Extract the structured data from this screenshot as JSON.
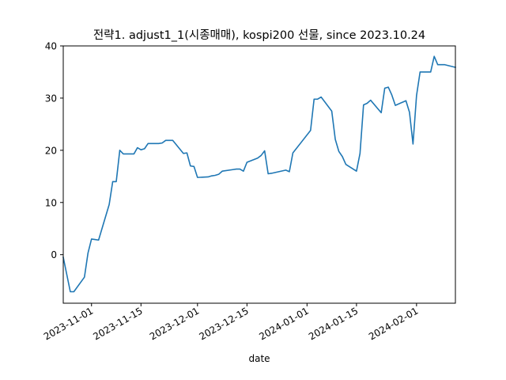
{
  "chart_data": {
    "type": "line",
    "title": "전략1. adjust1_1(시종매매), kospi200 선물, since 2023.10.24",
    "xlabel": "date",
    "ylabel": "",
    "xlim": [
      "2023-10-24",
      "2024-02-12"
    ],
    "ylim": [
      -9.3,
      40
    ],
    "grid": false,
    "yticks": [
      0,
      10,
      20,
      30,
      40
    ],
    "yticklabels": [
      "0",
      "10",
      "20",
      "30",
      "40"
    ],
    "xticks": [
      "2023-11-01",
      "2023-11-15",
      "2023-12-01",
      "2023-12-15",
      "2024-01-01",
      "2024-01-15",
      "2024-02-01"
    ],
    "xticklabels": [
      "2023-11-01",
      "2023-11-15",
      "2023-12-01",
      "2023-12-15",
      "2024-01-01",
      "2024-01-15",
      "2024-02-01"
    ],
    "line_color": "#1f77b4",
    "series": [
      {
        "x": [
          "2023-10-24",
          "2023-10-25",
          "2023-10-26",
          "2023-10-27",
          "2023-10-30",
          "2023-10-31",
          "2023-11-01",
          "2023-11-02",
          "2023-11-03",
          "2023-11-06",
          "2023-11-07",
          "2023-11-08",
          "2023-11-09",
          "2023-11-10",
          "2023-11-13",
          "2023-11-14",
          "2023-11-15",
          "2023-11-16",
          "2023-11-17",
          "2023-11-20",
          "2023-11-21",
          "2023-11-22",
          "2023-11-23",
          "2023-11-24",
          "2023-11-27",
          "2023-11-28",
          "2023-11-29",
          "2023-11-30",
          "2023-12-01",
          "2023-12-04",
          "2023-12-05",
          "2023-12-06",
          "2023-12-07",
          "2023-12-08",
          "2023-12-11",
          "2023-12-12",
          "2023-12-13",
          "2023-12-14",
          "2023-12-15",
          "2023-12-18",
          "2023-12-19",
          "2023-12-20",
          "2023-12-21",
          "2023-12-22",
          "2023-12-26",
          "2023-12-27",
          "2023-12-28",
          "2024-01-02",
          "2024-01-03",
          "2024-01-04",
          "2024-01-05",
          "2024-01-08",
          "2024-01-09",
          "2024-01-10",
          "2024-01-11",
          "2024-01-12",
          "2024-01-15",
          "2024-01-16",
          "2024-01-17",
          "2024-01-18",
          "2024-01-19",
          "2024-01-22",
          "2024-01-23",
          "2024-01-24",
          "2024-01-25",
          "2024-01-26",
          "2024-01-29",
          "2024-01-30",
          "2024-01-31",
          "2024-02-01",
          "2024-02-02",
          "2024-02-05",
          "2024-02-06",
          "2024-02-07",
          "2024-02-08",
          "2024-02-09",
          "2024-02-12"
        ],
        "y": [
          -0.5,
          -3.8,
          -7.1,
          -7.1,
          -4.3,
          0.3,
          3.0,
          2.9,
          2.8,
          9.6,
          14.0,
          14.0,
          20.0,
          19.3,
          19.3,
          20.5,
          20.1,
          20.3,
          21.3,
          21.3,
          21.4,
          21.9,
          21.9,
          21.9,
          19.4,
          19.5,
          17.0,
          16.9,
          14.8,
          14.9,
          15.1,
          15.2,
          15.4,
          16.0,
          16.3,
          16.4,
          16.4,
          16.0,
          17.7,
          18.5,
          19.0,
          19.9,
          15.5,
          15.6,
          16.2,
          15.9,
          19.5,
          23.8,
          29.8,
          29.8,
          30.2,
          27.5,
          22.1,
          19.8,
          18.8,
          17.3,
          16.0,
          19.4,
          28.7,
          29.0,
          29.6,
          27.2,
          31.9,
          32.1,
          30.6,
          28.6,
          29.5,
          27.3,
          21.2,
          30.5,
          35.0,
          35.0,
          38.0,
          36.4,
          36.4,
          36.4,
          35.9
        ]
      }
    ]
  }
}
